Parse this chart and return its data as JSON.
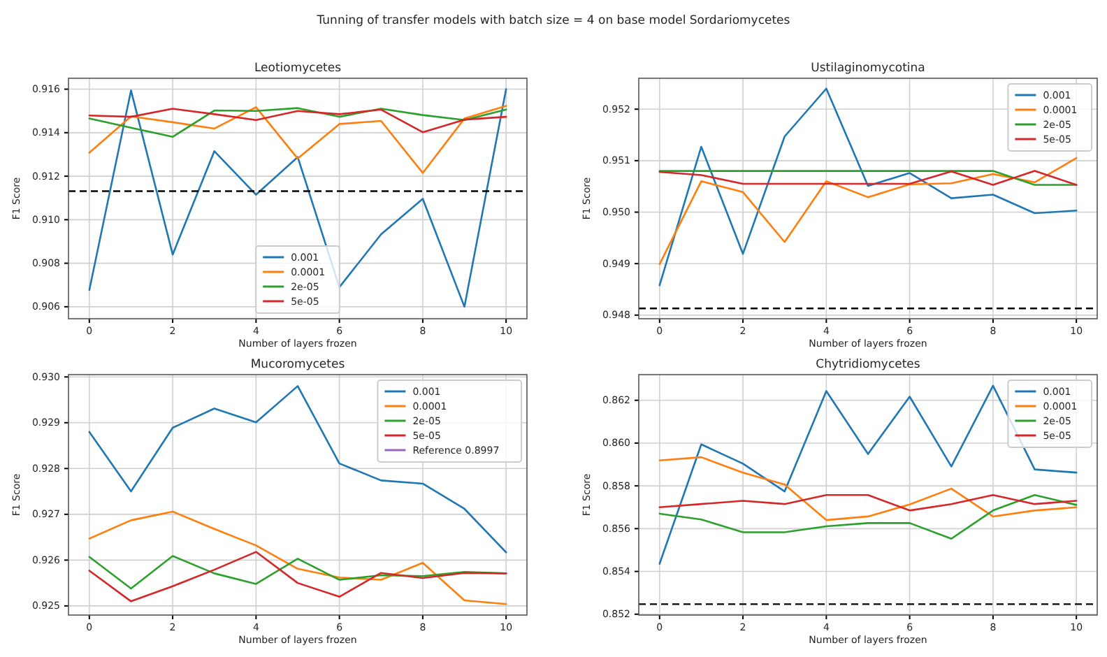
{
  "chart_data": [
    {
      "type": "line",
      "title": "Leotiomycetes",
      "xlabel": "Number of layers frozen",
      "ylabel": "F1 Score",
      "annotations": [
        "Tunning of transfer models with batch size = 4 on base model Sordariomycetes"
      ],
      "x": [
        0,
        1,
        2,
        3,
        4,
        5,
        6,
        7,
        8,
        9,
        10
      ],
      "xlim": [
        -0.5,
        10.5
      ],
      "xticks": [
        0,
        2,
        4,
        6,
        8,
        10
      ],
      "ylim": [
        0.90545,
        0.9165
      ],
      "yticks": [
        {
          "value": 0.906,
          "label": "0.906"
        },
        {
          "value": 0.908,
          "label": "0.908"
        },
        {
          "value": 0.91,
          "label": "0.910"
        },
        {
          "value": 0.912,
          "label": "0.912"
        },
        {
          "value": 0.914,
          "label": "0.914"
        },
        {
          "value": 0.916,
          "label": "0.916"
        }
      ],
      "grid": true,
      "legend": "bottom",
      "line_style": "solid",
      "series": [
        {
          "name": "0.001",
          "color": "#1f77b4",
          "values": [
            0.90677,
            0.91594,
            0.9084,
            0.91315,
            0.91115,
            0.91288,
            0.9069,
            0.90933,
            0.91096,
            0.906,
            0.916
          ]
        },
        {
          "name": "0.0001",
          "color": "#ff7f0e",
          "values": [
            0.91308,
            0.91475,
            0.91448,
            0.91419,
            0.91517,
            0.91281,
            0.9144,
            0.91454,
            0.91215,
            0.91465,
            0.91523
          ]
        },
        {
          "name": "2e-05",
          "color": "#2ca02c",
          "values": [
            0.91465,
            0.91423,
            0.91381,
            0.91502,
            0.915,
            0.91513,
            0.91473,
            0.9151,
            0.91481,
            0.91458,
            0.91506
          ]
        },
        {
          "name": "5e-05",
          "color": "#d62728",
          "values": [
            0.91479,
            0.91473,
            0.9151,
            0.91485,
            0.91458,
            0.915,
            0.91485,
            0.91506,
            0.91402,
            0.9146,
            0.91473
          ]
        }
      ],
      "ref_lines": [
        {
          "axis": "y",
          "value": 0.91131,
          "color": "#000000",
          "line_style": "dashed"
        }
      ]
    },
    {
      "type": "line",
      "title": "Ustilaginomycotina",
      "xlabel": "Number of layers frozen",
      "ylabel": "F1 Score",
      "x": [
        0,
        1,
        2,
        3,
        4,
        5,
        6,
        7,
        8,
        9,
        10
      ],
      "xlim": [
        -0.5,
        10.5
      ],
      "xticks": [
        0,
        2,
        4,
        6,
        8,
        10
      ],
      "ylim": [
        0.94793,
        0.9526
      ],
      "yticks": [
        {
          "value": 0.948,
          "label": "0.948"
        },
        {
          "value": 0.949,
          "label": "0.949"
        },
        {
          "value": 0.95,
          "label": "0.950"
        },
        {
          "value": 0.951,
          "label": "0.951"
        },
        {
          "value": 0.952,
          "label": "0.952"
        }
      ],
      "grid": true,
      "legend": "top right",
      "line_style": "solid",
      "series": [
        {
          "name": "0.001",
          "color": "#1f77b4",
          "values": [
            0.94858,
            0.95127,
            0.94919,
            0.95147,
            0.9524,
            0.95051,
            0.95076,
            0.95027,
            0.95034,
            0.94998,
            0.95003
          ]
        },
        {
          "name": "0.0001",
          "color": "#ff7f0e",
          "values": [
            0.94899,
            0.9506,
            0.95039,
            0.94942,
            0.9506,
            0.95029,
            0.95054,
            0.95056,
            0.95074,
            0.95058,
            0.95105
          ]
        },
        {
          "name": "2e-05",
          "color": "#2ca02c",
          "values": [
            0.9508,
            0.9508,
            0.9508,
            0.9508,
            0.9508,
            0.9508,
            0.9508,
            0.9508,
            0.9508,
            0.95053,
            0.95053
          ]
        },
        {
          "name": "5e-05",
          "color": "#d62728",
          "values": [
            0.95078,
            0.95072,
            0.95055,
            0.95055,
            0.95055,
            0.95055,
            0.95055,
            0.95079,
            0.95053,
            0.9508,
            0.95053
          ]
        }
      ],
      "ref_lines": [
        {
          "axis": "y",
          "value": 0.94813,
          "color": "#000000",
          "line_style": "dashed"
        }
      ]
    },
    {
      "type": "line",
      "title": "Mucoromycetes",
      "xlabel": "Number of layers frozen",
      "ylabel": "F1 Score",
      "x": [
        0,
        1,
        2,
        3,
        4,
        5,
        6,
        7,
        8,
        9,
        10
      ],
      "xlim": [
        -0.5,
        10.5
      ],
      "xticks": [
        0,
        2,
        4,
        6,
        8,
        10
      ],
      "ylim": [
        0.9248,
        0.93005
      ],
      "yticks": [
        {
          "value": 0.925,
          "label": "0.925"
        },
        {
          "value": 0.926,
          "label": "0.926"
        },
        {
          "value": 0.927,
          "label": "0.927"
        },
        {
          "value": 0.928,
          "label": "0.928"
        },
        {
          "value": 0.929,
          "label": "0.929"
        },
        {
          "value": 0.93,
          "label": "0.930"
        }
      ],
      "grid": true,
      "legend": "top right",
      "line_style": "solid",
      "series": [
        {
          "name": "0.001",
          "color": "#1f77b4",
          "values": [
            0.9288,
            0.9275,
            0.92889,
            0.92931,
            0.92901,
            0.9298,
            0.92811,
            0.92774,
            0.92767,
            0.92712,
            0.92617
          ]
        },
        {
          "name": "0.0001",
          "color": "#ff7f0e",
          "values": [
            0.92647,
            0.92687,
            0.92706,
            0.92668,
            0.92632,
            0.92581,
            0.92562,
            0.92557,
            0.92594,
            0.92512,
            0.92504
          ]
        },
        {
          "name": "2e-05",
          "color": "#2ca02c",
          "values": [
            0.92607,
            0.92538,
            0.92609,
            0.92571,
            0.92548,
            0.92603,
            0.92557,
            0.92567,
            0.92565,
            0.92574,
            0.92571
          ]
        },
        {
          "name": "5e-05",
          "color": "#d62728",
          "values": [
            0.92577,
            0.9251,
            0.92543,
            0.92579,
            0.92618,
            0.9255,
            0.9252,
            0.92572,
            0.92561,
            0.92572,
            0.92571
          ]
        },
        {
          "name": "Reference 0.8997",
          "color": "#9467bd",
          "values": [
            null,
            null,
            null,
            null,
            null,
            null,
            null,
            null,
            null,
            null,
            null
          ]
        }
      ]
    },
    {
      "type": "line",
      "title": "Chytridiomycetes",
      "xlabel": "Number of layers frozen",
      "ylabel": "F1 Score",
      "x": [
        0,
        1,
        2,
        3,
        4,
        5,
        6,
        7,
        8,
        9,
        10
      ],
      "xlim": [
        -0.5,
        10.5
      ],
      "xticks": [
        0,
        2,
        4,
        6,
        8,
        10
      ],
      "ylim": [
        0.85196,
        0.8632
      ],
      "yticks": [
        {
          "value": 0.852,
          "label": "0.852"
        },
        {
          "value": 0.854,
          "label": "0.854"
        },
        {
          "value": 0.856,
          "label": "0.856"
        },
        {
          "value": 0.858,
          "label": "0.858"
        },
        {
          "value": 0.86,
          "label": "0.860"
        },
        {
          "value": 0.862,
          "label": "0.862"
        }
      ],
      "grid": true,
      "legend": "top right",
      "line_style": "solid",
      "series": [
        {
          "name": "0.001",
          "color": "#1f77b4",
          "values": [
            0.85436,
            0.85994,
            0.85904,
            0.85774,
            0.86243,
            0.85949,
            0.86217,
            0.85891,
            0.86268,
            0.85877,
            0.85862
          ]
        },
        {
          "name": "0.0001",
          "color": "#ff7f0e",
          "values": [
            0.85919,
            0.85934,
            0.85862,
            0.85806,
            0.8564,
            0.85657,
            0.85713,
            0.85787,
            0.85657,
            0.85685,
            0.857
          ]
        },
        {
          "name": "2e-05",
          "color": "#2ca02c",
          "values": [
            0.8567,
            0.85643,
            0.85583,
            0.85583,
            0.85611,
            0.85626,
            0.85626,
            0.85553,
            0.85685,
            0.85757,
            0.85711
          ]
        },
        {
          "name": "5e-05",
          "color": "#d62728",
          "values": [
            0.857,
            0.85715,
            0.8573,
            0.85715,
            0.85757,
            0.85757,
            0.85685,
            0.85715,
            0.85757,
            0.85715,
            0.8573
          ]
        }
      ],
      "ref_lines": [
        {
          "axis": "y",
          "value": 0.85247,
          "color": "#000000",
          "line_style": "dashed"
        }
      ]
    }
  ]
}
